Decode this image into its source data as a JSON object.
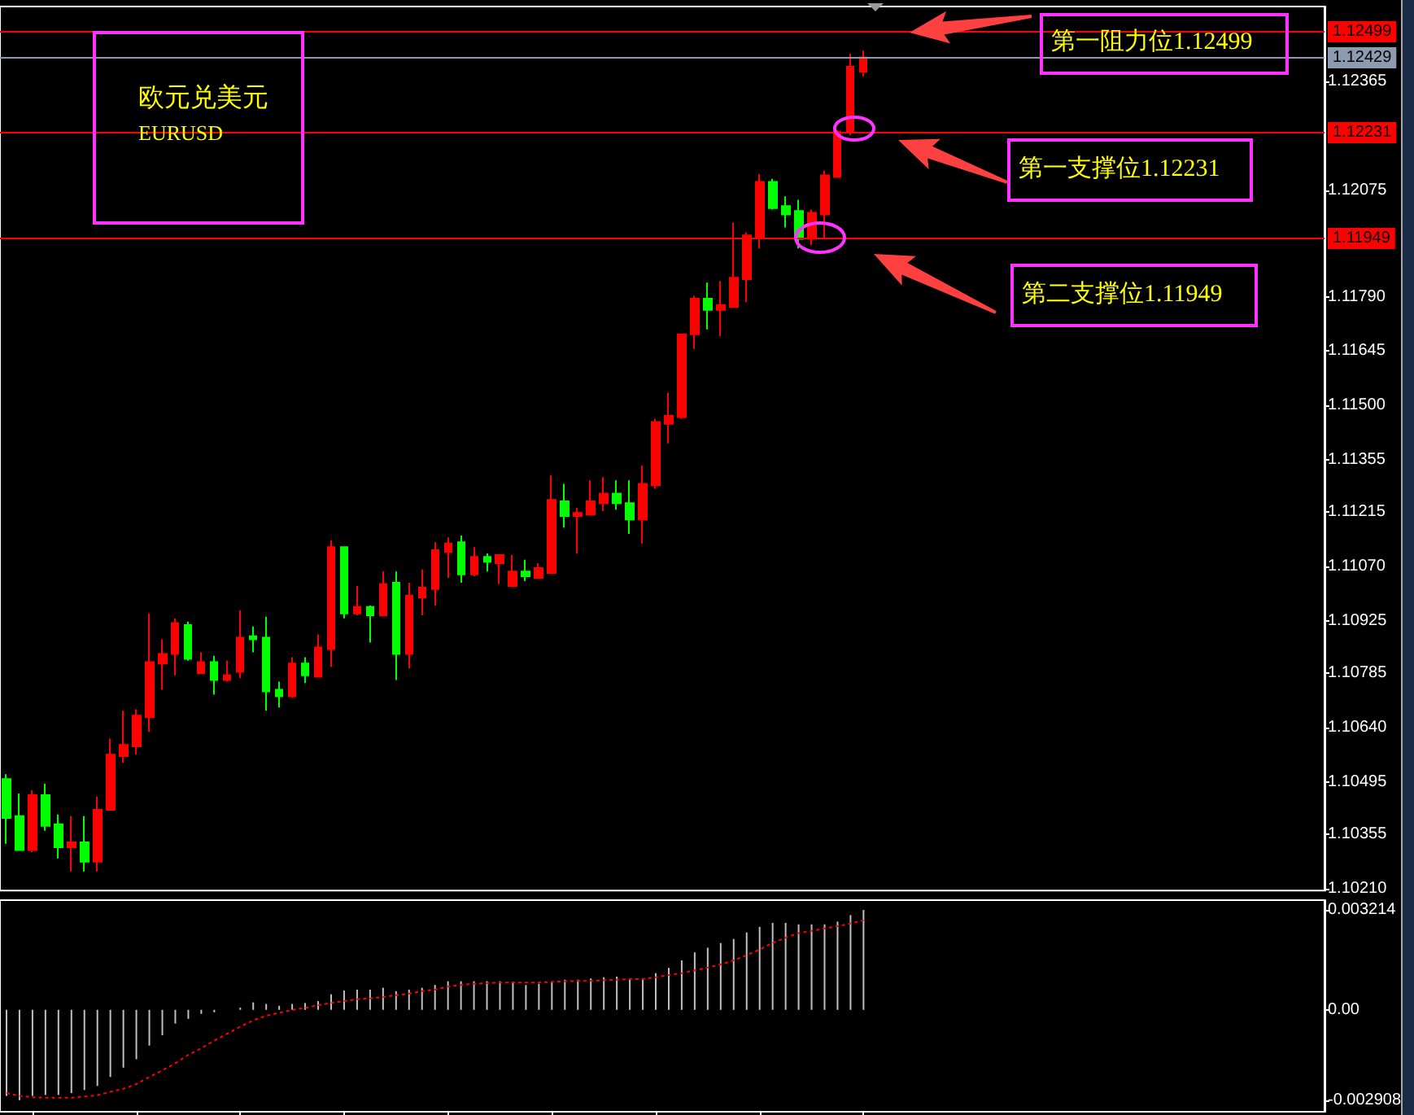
{
  "chart_data": [
    {
      "type": "candlestick",
      "title": "欧元兑美元",
      "subtitle": "EURUSD",
      "categories": [
        null,
        null,
        null,
        null,
        null,
        null,
        null,
        null,
        null,
        null,
        null,
        null,
        null,
        null,
        null,
        null,
        null,
        null,
        null,
        null,
        null,
        null,
        null,
        null,
        null,
        null,
        null,
        null,
        null,
        null,
        null,
        null,
        null,
        null,
        null,
        null,
        null,
        null,
        null,
        null,
        null,
        null,
        null,
        null,
        null,
        null,
        null,
        null,
        null,
        null,
        null,
        null,
        null,
        null,
        null,
        null,
        null,
        null,
        null,
        null,
        null,
        null,
        null,
        null,
        null,
        null,
        null,
        null,
        null,
        null,
        null,
        null,
        null,
        null,
        null,
        null,
        null,
        null,
        null,
        null,
        null,
        null,
        null,
        null,
        null,
        null,
        null,
        null,
        null,
        null,
        null,
        null,
        null,
        null,
        null,
        null,
        null,
        null,
        null,
        null,
        null,
        null
      ],
      "ohlc": [
        [
          1.10503,
          1.10516,
          1.1033,
          1.10399
        ],
        [
          1.10404,
          1.10464,
          1.10313,
          1.10313
        ],
        [
          1.10313,
          1.10473,
          1.10308,
          1.1046
        ],
        [
          1.1046,
          1.1049,
          1.10365,
          1.10378
        ],
        [
          1.10382,
          1.10408,
          1.10291,
          1.10321
        ],
        [
          1.10321,
          1.10404,
          1.10256,
          1.10334
        ],
        [
          1.10334,
          1.10404,
          1.10256,
          1.10282
        ],
        [
          1.10282,
          1.10456,
          1.10256,
          1.10421
        ],
        [
          1.10421,
          1.10611,
          1.10421,
          1.10568
        ],
        [
          1.10564,
          1.10685,
          1.10546,
          1.10594
        ],
        [
          1.1059,
          1.10689,
          1.10568,
          1.10672
        ],
        [
          1.10668,
          1.10945,
          1.10629,
          1.10815
        ],
        [
          1.10811,
          1.10876,
          1.10741,
          1.10837
        ],
        [
          1.10837,
          1.10932,
          1.1078,
          1.10919
        ],
        [
          1.10914,
          1.10923,
          1.10819,
          1.10824
        ],
        [
          1.10785,
          1.10841,
          1.10785,
          1.10815
        ],
        [
          1.10815,
          1.10832,
          1.10728,
          1.10767
        ],
        [
          1.10767,
          1.10819,
          1.10763,
          1.1078
        ],
        [
          1.10789,
          1.10953,
          1.10772,
          1.1088
        ],
        [
          1.10884,
          1.1091,
          1.10841,
          1.10876
        ],
        [
          1.1088,
          1.10936,
          1.10685,
          1.10737
        ],
        [
          1.10741,
          1.10763,
          1.10694,
          1.10724
        ],
        [
          1.10724,
          1.10828,
          1.1072,
          1.10811
        ],
        [
          1.10811,
          1.10828,
          1.10759,
          1.1078
        ],
        [
          1.10776,
          1.10889,
          1.10776,
          1.10854
        ],
        [
          1.1085,
          1.1114,
          1.10802,
          1.11122
        ],
        [
          1.11122,
          1.11122,
          1.10932,
          1.10945
        ],
        [
          1.10945,
          1.11018,
          1.1094,
          1.10962
        ],
        [
          1.10962,
          1.10966,
          1.10867,
          1.1094
        ],
        [
          1.1094,
          1.11057,
          1.1094,
          1.11023
        ],
        [
          1.11027,
          1.11057,
          1.10767,
          1.10837
        ],
        [
          1.10837,
          1.11027,
          1.10798,
          1.10992
        ],
        [
          1.10988,
          1.11062,
          1.1094,
          1.11014
        ],
        [
          1.1101,
          1.11135,
          1.10966,
          1.11114
        ],
        [
          1.11109,
          1.11148,
          1.1104,
          1.11131
        ],
        [
          1.11135,
          1.11153,
          1.11027,
          1.11049
        ],
        [
          1.11049,
          1.11122,
          1.11044,
          1.11096
        ],
        [
          1.11096,
          1.11105,
          1.11057,
          1.11083
        ],
        [
          1.11079,
          1.11101,
          1.11023,
          1.11101
        ],
        [
          1.11018,
          1.11101,
          1.11018,
          1.11057
        ],
        [
          1.11057,
          1.11088,
          1.11031,
          1.11044
        ],
        [
          1.1104,
          1.11079,
          1.1104,
          1.11066
        ],
        [
          1.11053,
          1.11313,
          1.11053,
          1.11248
        ],
        [
          1.11244,
          1.11291,
          1.11174,
          1.11205
        ],
        [
          1.11205,
          1.11226,
          1.11105,
          1.11213
        ],
        [
          1.11209,
          1.113,
          1.11209,
          1.11244
        ],
        [
          1.11239,
          1.11309,
          1.11218,
          1.11265
        ],
        [
          1.11265,
          1.113,
          1.11222,
          1.11239
        ],
        [
          1.11239,
          1.113,
          1.11157,
          1.11196
        ],
        [
          1.11196,
          1.11339,
          1.11131,
          1.11291
        ],
        [
          1.11287,
          1.11464,
          1.11278,
          1.11456
        ],
        [
          1.11451,
          1.11534,
          1.11399,
          1.11473
        ],
        [
          1.11469,
          1.1169,
          1.11464,
          1.1169
        ],
        [
          1.1169,
          1.11793,
          1.11651,
          1.11785
        ],
        [
          1.11785,
          1.11828,
          1.11703,
          1.11755
        ],
        [
          1.11755,
          1.11832,
          1.11685,
          1.11768
        ],
        [
          1.11763,
          1.11988,
          1.11763,
          1.11841
        ],
        [
          1.11837,
          1.11962,
          1.11776,
          1.11954
        ],
        [
          1.11949,
          1.12118,
          1.11919,
          1.12097
        ],
        [
          1.12097,
          1.12105,
          1.12023,
          1.12027
        ],
        [
          1.12032,
          1.12058,
          1.11975,
          1.1201
        ],
        [
          1.12019,
          1.12049,
          1.11919,
          1.11945
        ],
        [
          1.11945,
          1.12023,
          1.11928,
          1.12014
        ],
        [
          1.1201,
          1.12127,
          1.11945,
          1.12114
        ],
        [
          1.1211,
          1.12235,
          1.1211,
          1.12231
        ],
        [
          1.12231,
          1.12439,
          1.12222,
          1.12404
        ],
        [
          1.12391,
          1.12447,
          1.12378,
          1.12429
        ],
        null,
        null,
        null,
        null,
        null,
        null,
        null,
        null,
        null,
        null,
        null,
        null,
        null,
        null,
        null,
        null,
        null,
        null,
        null,
        null,
        null,
        null,
        null,
        null,
        null,
        null,
        null,
        null,
        null,
        null,
        null,
        null,
        null,
        null,
        null
      ],
      "colors": [
        "#00ff00",
        "#00ff00",
        "#ff0000",
        "#00ff00",
        "#00ff00",
        "#ff0000",
        "#00ff00",
        "#ff0000",
        "#ff0000",
        "#ff0000",
        "#ff0000",
        "#ff0000",
        "#ff0000",
        "#ff0000",
        "#00ff00",
        "#ff0000",
        "#00ff00",
        "#ff0000",
        "#ff0000",
        "#00ff00",
        "#00ff00",
        "#00ff00",
        "#ff0000",
        "#00ff00",
        "#ff0000",
        "#ff0000",
        "#00ff00",
        "#ff0000",
        "#00ff00",
        "#ff0000",
        "#00ff00",
        "#ff0000",
        "#ff0000",
        "#ff0000",
        "#ff0000",
        "#00ff00",
        "#ff0000",
        "#00ff00",
        "#ff0000",
        "#ff0000",
        "#00ff00",
        "#ff0000",
        "#ff0000",
        "#00ff00",
        "#ff0000",
        "#ff0000",
        "#ff0000",
        "#00ff00",
        "#00ff00",
        "#ff0000",
        "#ff0000",
        "#ff0000",
        "#ff0000",
        "#ff0000",
        "#00ff00",
        "#ff0000",
        "#ff0000",
        "#ff0000",
        "#ff0000",
        "#00ff00",
        "#00ff00",
        "#00ff00",
        "#ff0000",
        "#ff0000",
        "#ff0000",
        "#ff0000",
        "#ff0000",
        null,
        null,
        null,
        null,
        null,
        null,
        null,
        null,
        null,
        null,
        null,
        null,
        null,
        null,
        null,
        null,
        null,
        null,
        null,
        null,
        null,
        null,
        null,
        null,
        null,
        null,
        null,
        null,
        null,
        null,
        null,
        null,
        null,
        null,
        null
      ],
      "ylim": [
        1.10205,
        1.12565
      ],
      "yticks": [
        {
          "value": 1.1021,
          "label": "1.10210"
        },
        1.10355,
        1.10495,
        {
          "value": 1.1064,
          "label": "1.10640"
        },
        1.10785,
        1.10925,
        {
          "value": 1.1107,
          "label": "1.11070"
        },
        1.11215,
        1.11355,
        {
          "value": 1.115,
          "label": "1.11500"
        },
        1.11645,
        {
          "value": 1.1179,
          "label": "1.11790"
        },
        1.12075,
        1.12365
      ],
      "tick_labels": "y",
      "grid": false,
      "ref_lines": [
        {
          "axis": "y",
          "value": 1.12499,
          "label": "1.12499",
          "color": "#ff0000"
        },
        {
          "axis": "y",
          "value": 1.12429,
          "label": "1.12429",
          "color": "#8c9bb0"
        },
        {
          "axis": "y",
          "value": 1.12231,
          "label": "1.12231",
          "color": "#ff0000"
        },
        {
          "axis": "y",
          "value": 1.11949,
          "label": "1.11949",
          "color": "#ff0000"
        }
      ],
      "annotations": [
        "第一阻力位1.12499",
        "第一支撑位1.12231",
        "第二支撑位1.11949"
      ]
    },
    {
      "type": "bar",
      "categories": [
        null,
        null,
        null,
        null,
        null,
        null,
        null,
        null,
        null,
        null,
        null,
        null,
        null,
        null,
        null,
        null,
        null,
        null,
        null,
        null,
        null,
        null,
        null,
        null,
        null,
        null,
        null,
        null,
        null,
        null,
        null,
        null,
        null,
        null,
        null,
        null,
        null,
        null,
        null,
        null,
        null,
        null,
        null,
        null,
        null,
        null,
        null,
        null,
        null,
        null,
        null,
        null,
        null,
        null,
        null,
        null,
        null,
        null,
        null,
        null,
        null,
        null,
        null,
        null,
        null,
        null,
        null,
        null,
        null,
        null,
        null,
        null,
        null,
        null,
        null,
        null,
        null,
        null,
        null,
        null,
        null,
        null,
        null,
        null,
        null,
        null,
        null,
        null,
        null,
        null,
        null,
        null,
        null,
        null,
        null,
        null,
        null,
        null,
        null,
        null,
        null,
        null
      ],
      "series": [
        {
          "type": "bar",
          "color": "#c0c0c0",
          "values": [
            -0.00277,
            -0.002908,
            -0.00277,
            -0.00274,
            -0.00274,
            -0.00268,
            -0.00258,
            -0.00245,
            -0.00216,
            -0.00186,
            -0.00159,
            -0.00115,
            -0.00082,
            -0.00044,
            -0.00029,
            -0.00013,
            -8e-05,
            0,
            7e-05,
            0.00024,
            0.00019,
            0.00013,
            0.00019,
            0.00022,
            0.00028,
            0.0005,
            0.00062,
            0.00065,
            0.00065,
            0.00071,
            0.0006,
            0.00065,
            0.00071,
            0.0008,
            0.00092,
            0.00092,
            0.00092,
            0.00092,
            0.00092,
            0.0009,
            0.0008,
            0.00084,
            0.0009,
            0.00097,
            0.00097,
            0.00101,
            0.00105,
            0.00107,
            0.00097,
            0.00101,
            0.00118,
            0.00135,
            0.00159,
            0.00185,
            0.002,
            0.00215,
            0.00228,
            0.00249,
            0.00267,
            0.0028,
            0.0028,
            0.00275,
            0.00275,
            0.00275,
            0.00284,
            0.00305,
            0.003214,
            null,
            null,
            null,
            null,
            null,
            null,
            null,
            null,
            null,
            null,
            null,
            null,
            null,
            null,
            null,
            null,
            null,
            null,
            null,
            null,
            null,
            null,
            null,
            null,
            null,
            null,
            null,
            null,
            null,
            null,
            null,
            null,
            null,
            null,
            null
          ]
        },
        {
          "type": "line",
          "color": "#ff0000",
          "values": [
            -0.00268,
            -0.00277,
            -0.00281,
            -0.00283,
            -0.00283,
            -0.00283,
            -0.00279,
            -0.00275,
            -0.00264,
            -0.00254,
            -0.00239,
            -0.00216,
            -0.00195,
            -0.00172,
            -0.00145,
            -0.00124,
            -0.00099,
            -0.00077,
            -0.00054,
            -0.00034,
            -0.00019,
            -0.0001,
            0,
            6e-05,
            0.00015,
            0.00022,
            0.00028,
            0.00034,
            0.00037,
            0.00041,
            0.00047,
            0.00052,
            0.0006,
            0.00065,
            0.00075,
            0.0008,
            0.00084,
            0.00086,
            0.00088,
            0.00088,
            0.00088,
            0.00088,
            0.0009,
            0.00092,
            0.00093,
            0.00093,
            0.00095,
            0.00097,
            0.00099,
            0.00099,
            0.00105,
            0.00112,
            0.00118,
            0.00127,
            0.00136,
            0.00146,
            0.00159,
            0.00176,
            0.00194,
            0.00215,
            0.00232,
            0.00247,
            0.00254,
            0.00262,
            0.00269,
            0.00278,
            0.00288,
            null,
            null,
            null,
            null,
            null,
            null,
            null,
            null,
            null,
            null,
            null,
            null,
            null,
            null,
            null,
            null,
            null,
            null,
            null,
            null,
            null,
            null,
            null,
            null,
            null,
            null,
            null,
            null,
            null,
            null,
            null,
            null,
            null,
            null,
            null
          ]
        }
      ],
      "ylim": [
        -0.00328,
        0.00353
      ],
      "yticks": [
        -0.002908,
        {
          "value": 0,
          "label": "0.00"
        },
        0.003214
      ],
      "tick_labels": "y",
      "grid": false,
      "marker": "none",
      "line_style": "dotted"
    }
  ]
}
